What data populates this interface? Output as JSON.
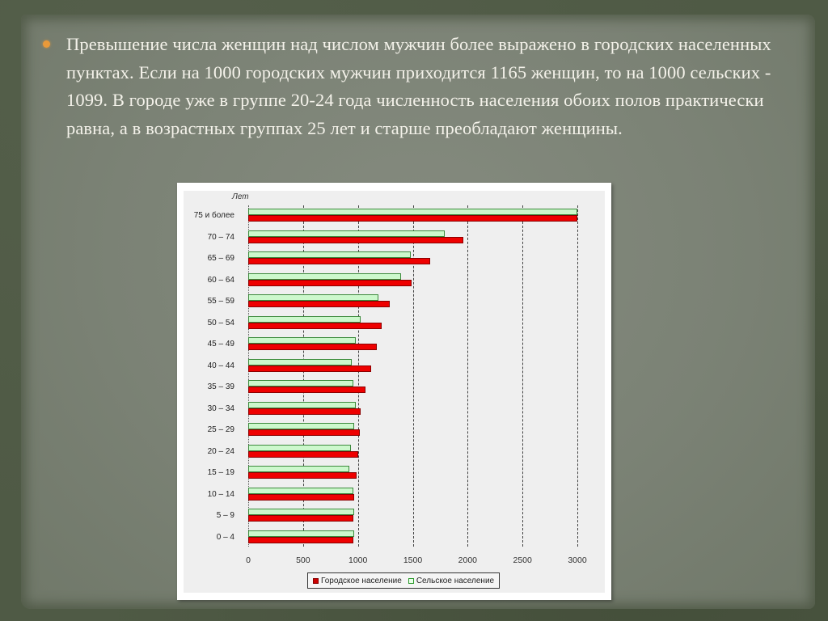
{
  "slide": {
    "bullet_color": "#e8993a",
    "text": "Превышение числа женщин над числом мужчин более выражено в городских населенных пунктах. Если на 1000 городских мужчин приходится 1165 женщин, то на 1000 сельских - 1099. В городе уже в группе 20-24 года численность населения обоих полов практически равна, а в возрастных группах 25 лет и старше преобладают женщины."
  },
  "chart_data": {
    "type": "bar",
    "orientation": "horizontal",
    "title": "",
    "xlabel": "",
    "ylabel": "Лет",
    "xlim": [
      0,
      3000
    ],
    "x_ticks": [
      "0",
      "500",
      "1000",
      "1500",
      "2000",
      "2500",
      "3000"
    ],
    "grid": "vertical dashed",
    "legend_position": "bottom",
    "categories": [
      "75 и более",
      "70 – 74",
      "65 – 69",
      "60 – 64",
      "55 – 59",
      "50 – 54",
      "45 – 49",
      "40 – 44",
      "35 – 39",
      "30 – 34",
      "25 – 29",
      "20 – 24",
      "15 – 19",
      "10 – 14",
      "5 – 9",
      "0 – 4"
    ],
    "series": [
      {
        "name": "Сельское население",
        "color": "#ccf8cc",
        "values": [
          3000,
          1790,
          1480,
          1390,
          1185,
          1025,
          980,
          945,
          960,
          980,
          965,
          935,
          920,
          960,
          965,
          965
        ]
      },
      {
        "name": "Городское население",
        "color": "#ee0000",
        "values": [
          3000,
          1960,
          1655,
          1490,
          1290,
          1215,
          1170,
          1120,
          1070,
          1025,
          1015,
          1000,
          985,
          965,
          960,
          960
        ]
      }
    ],
    "legend": [
      "Городское население",
      "Сельское население"
    ]
  }
}
